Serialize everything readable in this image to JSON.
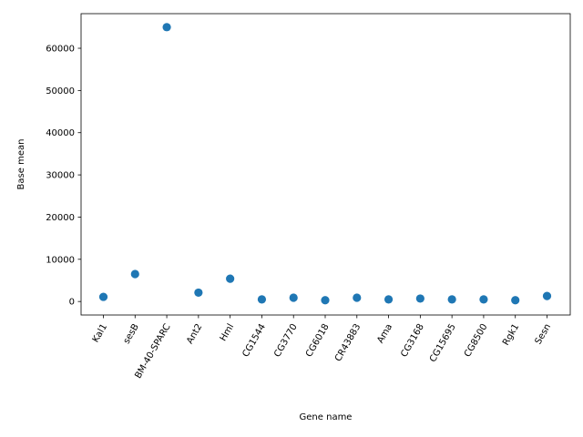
{
  "chart_data": {
    "type": "scatter",
    "xlabel": "Gene name",
    "ylabel": "Base mean",
    "categories": [
      "Kal1",
      "sesB",
      "BM-40-SPARC",
      "Ant2",
      "Hml",
      "CG1544",
      "CG3770",
      "CG6018",
      "CR43883",
      "Ama",
      "CG3168",
      "CG15695",
      "CG8500",
      "Rgk1",
      "Sesn"
    ],
    "values": [
      1100,
      6500,
      65000,
      2100,
      5400,
      500,
      900,
      300,
      900,
      500,
      700,
      500,
      500,
      300,
      1300
    ],
    "ylim": [
      -3200,
      68200
    ],
    "yticks": [
      0,
      10000,
      20000,
      30000,
      40000,
      50000,
      60000
    ],
    "grid": false,
    "marker_color": "#1f77b4"
  }
}
